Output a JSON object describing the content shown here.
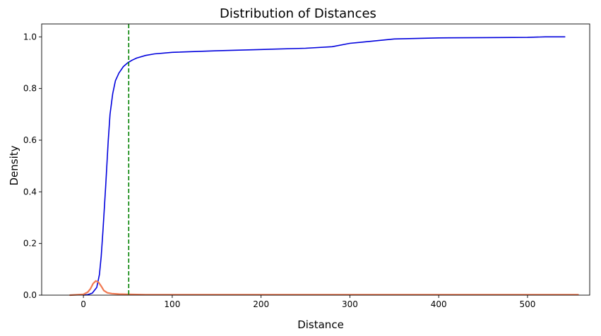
{
  "chart_data": {
    "type": "line",
    "title": "Distribution of Distances",
    "xlabel": "Distance",
    "ylabel": "Density",
    "xlim": [
      -47,
      570
    ],
    "ylim": [
      0,
      1.05
    ],
    "xticks": [
      0,
      100,
      200,
      300,
      400,
      500
    ],
    "yticks": [
      0.0,
      0.2,
      0.4,
      0.6,
      0.8,
      1.0
    ],
    "grid": false,
    "legend": "none",
    "series": [
      {
        "kind": "cdf",
        "color": "#0000dd",
        "x": [
          0,
          5,
          10,
          15,
          18,
          20,
          22,
          25,
          28,
          30,
          33,
          36,
          40,
          45,
          50,
          55,
          60,
          70,
          80,
          100,
          150,
          200,
          250,
          280,
          300,
          330,
          350,
          400,
          450,
          500,
          520,
          542
        ],
        "y": [
          0.0,
          0.002,
          0.008,
          0.03,
          0.08,
          0.15,
          0.25,
          0.42,
          0.6,
          0.7,
          0.78,
          0.83,
          0.86,
          0.885,
          0.9,
          0.91,
          0.918,
          0.928,
          0.934,
          0.94,
          0.946,
          0.951,
          0.956,
          0.962,
          0.975,
          0.985,
          0.992,
          0.996,
          0.997,
          0.998,
          1.0,
          1.0
        ]
      },
      {
        "kind": "density",
        "color": "#f07850",
        "x": [
          -15,
          0,
          5,
          8,
          11,
          14,
          17,
          20,
          23,
          27,
          32,
          40,
          50,
          70,
          100,
          200,
          300,
          400,
          500,
          557
        ],
        "y": [
          0.0,
          0.003,
          0.012,
          0.025,
          0.045,
          0.055,
          0.05,
          0.035,
          0.018,
          0.009,
          0.006,
          0.004,
          0.003,
          0.002,
          0.002,
          0.002,
          0.002,
          0.002,
          0.002,
          0.002
        ]
      }
    ],
    "vline": {
      "x": 51,
      "color": "#008000",
      "style": "dashed"
    }
  }
}
